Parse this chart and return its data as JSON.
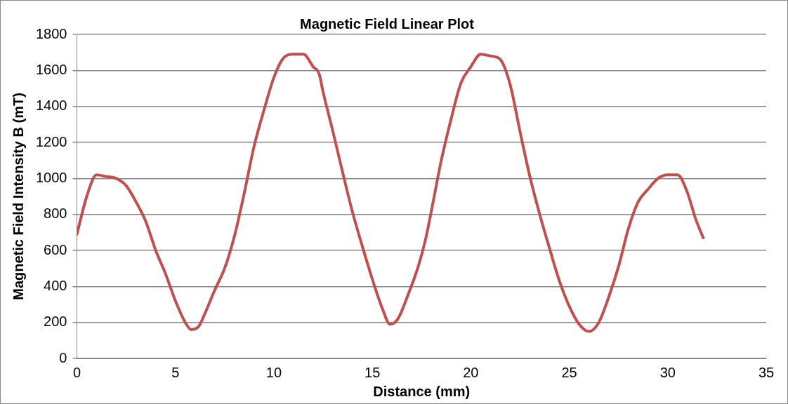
{
  "chart_data": {
    "type": "line",
    "title": "Magnetic Field Linear Plot",
    "xlabel": "Distance (mm)",
    "ylabel": "Magnetic Field Intensity B (mT)",
    "x": [
      0,
      0.5,
      1,
      1.5,
      2,
      2.5,
      3,
      3.5,
      4,
      4.5,
      5,
      5.5,
      5.8,
      6.2,
      6.5,
      7,
      7.5,
      8,
      8.5,
      9,
      9.5,
      10,
      10.5,
      11,
      11.5,
      12,
      12.3,
      12.5,
      13,
      13.5,
      14,
      14.5,
      15,
      15.5,
      15.9,
      16.3,
      16.8,
      17.3,
      17.7,
      18,
      18.5,
      19,
      19.5,
      20,
      20.5,
      21,
      21.5,
      22,
      22.5,
      23,
      23.5,
      24,
      24.5,
      25,
      25.5,
      26,
      26.5,
      27,
      27.5,
      28,
      28.5,
      29,
      29.5,
      30,
      30.5,
      31,
      31.4,
      31.8
    ],
    "series": [
      {
        "color": "#c0504d",
        "values": [
          690,
          900,
          1020,
          1010,
          1000,
          960,
          870,
          760,
          600,
          470,
          320,
          200,
          160,
          180,
          250,
          380,
          500,
          680,
          920,
          1180,
          1380,
          1560,
          1670,
          1690,
          1690,
          1620,
          1580,
          1480,
          1260,
          1030,
          810,
          620,
          440,
          280,
          190,
          220,
          350,
          500,
          660,
          820,
          1100,
          1330,
          1530,
          1620,
          1690,
          1680,
          1660,
          1520,
          1260,
          1010,
          800,
          610,
          430,
          290,
          190,
          150,
          200,
          340,
          510,
          720,
          870,
          940,
          1000,
          1020,
          1020,
          920,
          780,
          670
        ]
      }
    ],
    "xlim": [
      0,
      35
    ],
    "xticks": [
      0,
      5,
      10,
      15,
      20,
      25,
      30,
      35
    ],
    "ylim": [
      0,
      1800
    ],
    "yticks": [
      0,
      200,
      400,
      600,
      800,
      1000,
      1200,
      1400,
      1600,
      1800
    ],
    "grid": "y",
    "legend": false,
    "marker": "none",
    "line_style": "solid"
  }
}
